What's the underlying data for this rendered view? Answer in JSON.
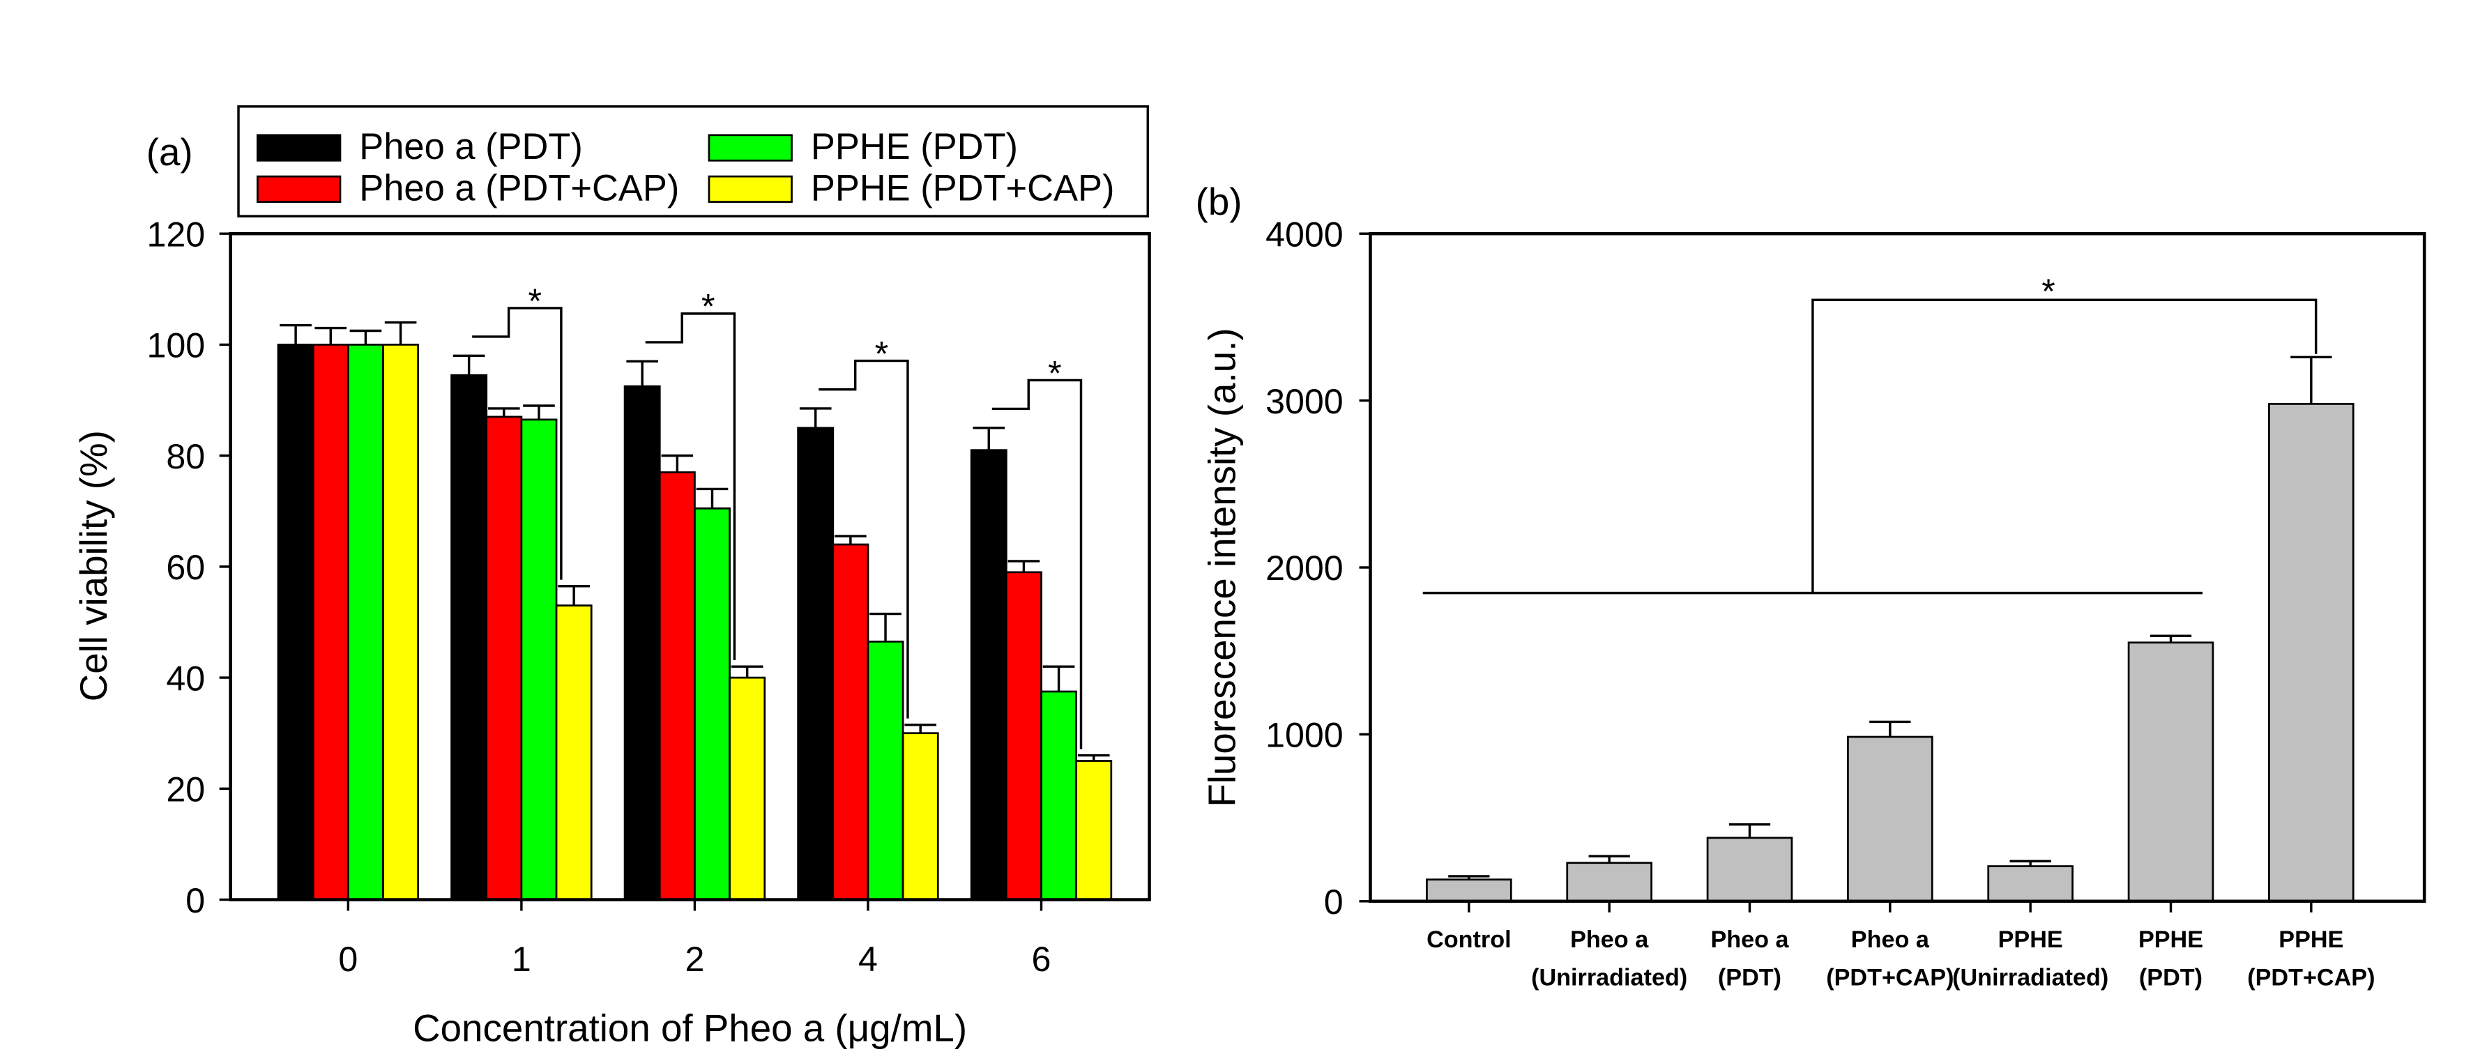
{
  "chart_data": [
    {
      "panel_label": "(a)",
      "type": "bar",
      "xlabel": "Concentration of Pheo a (μg/mL)",
      "ylabel": "Cell viability (%)",
      "ylim": [
        0,
        120
      ],
      "yticks": [
        0,
        20,
        40,
        60,
        80,
        100,
        120
      ],
      "grid": false,
      "categories": [
        "0",
        "1",
        "2",
        "4",
        "6"
      ],
      "series": [
        {
          "name": "Pheo a (PDT)",
          "color": "#000000",
          "values": [
            100,
            94.5,
            92.5,
            85,
            81
          ],
          "errors": [
            3.5,
            3.5,
            4.5,
            3.5,
            4
          ]
        },
        {
          "name": "Pheo a (PDT+CAP)",
          "color": "#ff0000",
          "values": [
            100,
            87,
            77,
            64,
            59
          ],
          "errors": [
            3,
            1.5,
            3,
            1.5,
            2
          ]
        },
        {
          "name": "PPHE (PDT)",
          "color": "#00ff00",
          "values": [
            100,
            86.5,
            70.5,
            46.5,
            37.5
          ],
          "errors": [
            2.5,
            2.5,
            3.5,
            5,
            4.5
          ]
        },
        {
          "name": "PPHE (PDT+CAP)",
          "color": "#ffff00",
          "values": [
            100,
            53,
            40,
            30,
            25
          ],
          "errors": [
            4,
            3.5,
            2,
            1.5,
            1
          ]
        }
      ],
      "legend": {
        "placement": "top",
        "columns": 2,
        "boxed": true
      },
      "significance": [
        {
          "category_index": 1,
          "label": "*"
        },
        {
          "category_index": 2,
          "label": "*"
        },
        {
          "category_index": 3,
          "label": "*"
        },
        {
          "category_index": 4,
          "label": "*"
        }
      ]
    },
    {
      "panel_label": "(b)",
      "type": "bar",
      "ylabel": "Fluorescence intensity (a.u.)",
      "ylim": [
        0,
        4000
      ],
      "yticks": [
        0,
        1000,
        2000,
        3000,
        4000
      ],
      "grid": false,
      "categories": [
        [
          "Control"
        ],
        [
          "Pheo a",
          "(Unirradiated)"
        ],
        [
          "Pheo a",
          "(PDT)"
        ],
        [
          "Pheo a",
          "(PDT+CAP)"
        ],
        [
          "PPHE",
          "(Unirradiated)"
        ],
        [
          "PPHE",
          "(PDT)"
        ],
        [
          "PPHE",
          "(PDT+CAP)"
        ]
      ],
      "series": [
        {
          "color": "#c0c0c0",
          "values": [
            130,
            230,
            380,
            985,
            210,
            1550,
            2980
          ],
          "errors": [
            20,
            40,
            80,
            90,
            30,
            40,
            280
          ]
        }
      ],
      "significance": [
        {
          "compare_range": [
            0,
            5
          ],
          "target_index": 6,
          "label": "*"
        }
      ]
    }
  ]
}
